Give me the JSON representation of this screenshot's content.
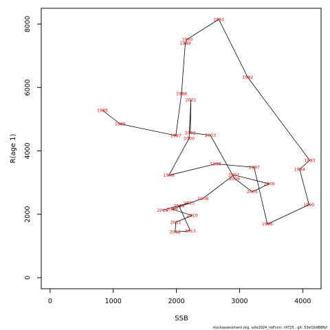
{
  "chart_data": {
    "type": "line",
    "xlabel": "SSB",
    "ylabel": "R(age 1)",
    "xlim": [
      -140,
      4290
    ],
    "ylim": [
      -350,
      8500
    ],
    "x_ticks": [
      "0",
      "1000",
      "2000",
      "3000",
      "4000"
    ],
    "y_ticks": [
      "0",
      "2000",
      "4000",
      "6000",
      "8000"
    ],
    "grid": false,
    "line_color": "#000000",
    "label_color": "#ff0000",
    "points": [
      {
        "year": "1985",
        "x": 830,
        "y": 5280
      },
      {
        "year": "1986",
        "x": 1110,
        "y": 4850
      },
      {
        "year": "1987",
        "x": 1990,
        "y": 4480
      },
      {
        "year": "1988",
        "x": 2080,
        "y": 5800
      },
      {
        "year": "1989",
        "x": 2140,
        "y": 7400
      },
      {
        "year": "1990",
        "x": 2170,
        "y": 7520
      },
      {
        "year": "1991",
        "x": 2670,
        "y": 8150
      },
      {
        "year": "1992",
        "x": 3130,
        "y": 6320
      },
      {
        "year": "1993",
        "x": 4110,
        "y": 3700
      },
      {
        "year": "1994",
        "x": 3950,
        "y": 3420
      },
      {
        "year": "1995",
        "x": 4100,
        "y": 2300
      },
      {
        "year": "1996",
        "x": 3440,
        "y": 1690
      },
      {
        "year": "1997",
        "x": 3230,
        "y": 3480
      },
      {
        "year": "1998",
        "x": 2620,
        "y": 3590
      },
      {
        "year": "1999",
        "x": 1880,
        "y": 3230
      },
      {
        "year": "2000",
        "x": 2200,
        "y": 4390
      },
      {
        "year": "2001",
        "x": 2230,
        "y": 5610
      },
      {
        "year": "2002",
        "x": 2220,
        "y": 4570
      },
      {
        "year": "2003",
        "x": 2540,
        "y": 4490
      },
      {
        "year": "2004",
        "x": 2920,
        "y": 3130
      },
      {
        "year": "2005",
        "x": 3200,
        "y": 2710
      },
      {
        "year": "2006",
        "x": 3470,
        "y": 2960
      },
      {
        "year": "2007",
        "x": 2910,
        "y": 3240
      },
      {
        "year": "2008",
        "x": 2420,
        "y": 2500
      },
      {
        "year": "2009",
        "x": 1930,
        "y": 2160
      },
      {
        "year": "2010",
        "x": 2250,
        "y": 1960
      },
      {
        "year": "2011",
        "x": 1990,
        "y": 1750
      },
      {
        "year": "2012",
        "x": 1980,
        "y": 1440
      },
      {
        "year": "2013",
        "x": 2220,
        "y": 1480
      },
      {
        "year": "2014",
        "x": 2040,
        "y": 2270
      },
      {
        "year": "2015",
        "x": 2200,
        "y": 2360
      },
      {
        "year": "2016",
        "x": 1780,
        "y": 2130
      }
    ]
  },
  "footer_text": "stockassessment.org, sole2024_noFcorr, r9725 , git: 53ef2b988fbf"
}
